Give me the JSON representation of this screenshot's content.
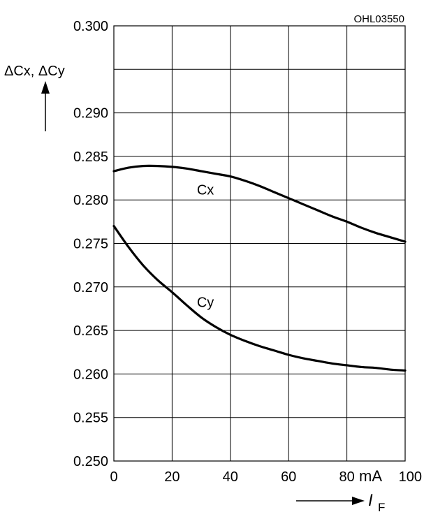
{
  "figure_code": "OHL03550",
  "y_axis_label": "ΔCx, ΔCy",
  "x_axis_label_main": "I",
  "x_axis_label_sub": "F",
  "x_unit": "mA",
  "chart_data": {
    "type": "line",
    "xlim": [
      0,
      100
    ],
    "ylim": [
      0.25,
      0.3
    ],
    "x_ticks": [
      0,
      20,
      40,
      60,
      80,
      100
    ],
    "x_tick_labels": [
      "0",
      "20",
      "40",
      "60",
      "80",
      "100"
    ],
    "y_ticks": [
      0.25,
      0.255,
      0.26,
      0.265,
      0.27,
      0.275,
      0.28,
      0.285,
      0.29,
      0.3
    ],
    "y_tick_labels": [
      "0.250",
      "0.255",
      "0.260",
      "0.265",
      "0.270",
      "0.275",
      "0.280",
      "0.285",
      "0.290",
      "0.300"
    ],
    "grid": true,
    "series": [
      {
        "name": "Cx",
        "x": [
          0,
          5,
          10,
          15,
          20,
          25,
          30,
          35,
          40,
          45,
          50,
          55,
          60,
          65,
          70,
          75,
          80,
          85,
          90,
          95,
          100
        ],
        "y": [
          0.2833,
          0.2837,
          0.2839,
          0.2839,
          0.2838,
          0.2836,
          0.2833,
          0.283,
          0.2827,
          0.2822,
          0.2816,
          0.2809,
          0.2802,
          0.2795,
          0.2788,
          0.2781,
          0.2775,
          0.2768,
          0.2762,
          0.2757,
          0.2752
        ]
      },
      {
        "name": "Cy",
        "x": [
          0,
          5,
          10,
          15,
          20,
          25,
          30,
          35,
          40,
          45,
          50,
          55,
          60,
          65,
          70,
          75,
          80,
          85,
          90,
          95,
          100
        ],
        "y": [
          0.277,
          0.2746,
          0.2725,
          0.2708,
          0.2694,
          0.2679,
          0.2665,
          0.2654,
          0.2645,
          0.2638,
          0.2632,
          0.2627,
          0.2622,
          0.2618,
          0.2615,
          0.2612,
          0.261,
          0.2608,
          0.2607,
          0.2605,
          0.2604
        ]
      }
    ]
  }
}
